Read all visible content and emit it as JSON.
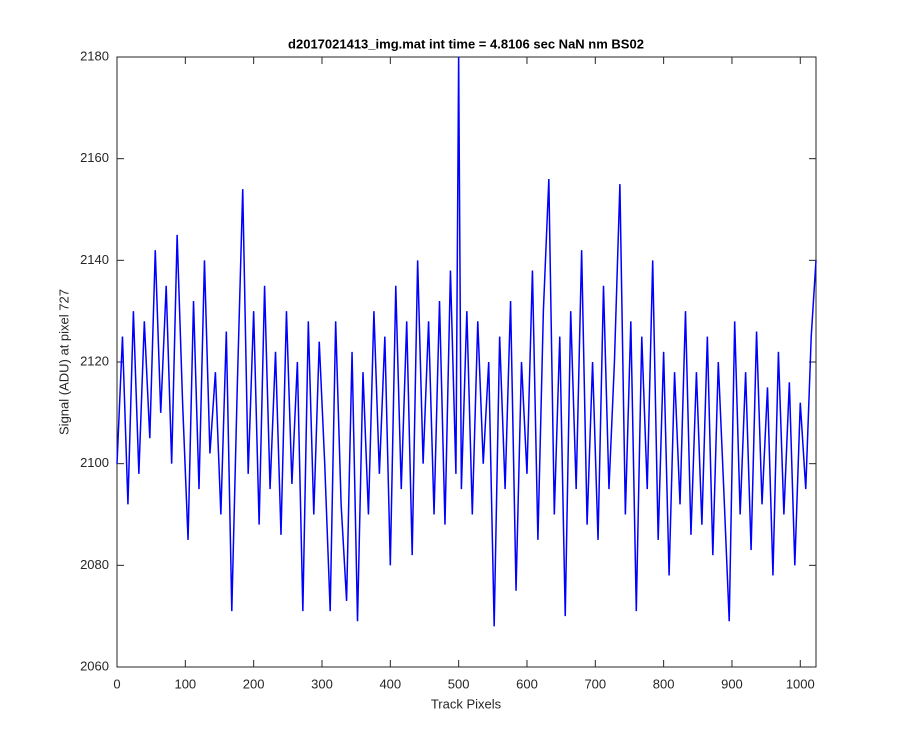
{
  "chart_data": {
    "type": "line",
    "title": "d2017021413_img.mat int time = 4.8106 sec  NaN nm BS02",
    "xlabel": "Track Pixels",
    "ylabel": "Signal (ADU) at pixel 727",
    "xlim": [
      0,
      1023
    ],
    "ylim": [
      2060,
      2180
    ],
    "xticks": [
      0,
      100,
      200,
      300,
      400,
      500,
      600,
      700,
      800,
      900,
      1000
    ],
    "yticks": [
      2060,
      2080,
      2100,
      2120,
      2140,
      2160,
      2180
    ],
    "x": [
      0,
      8,
      16,
      24,
      32,
      40,
      48,
      56,
      64,
      72,
      80,
      88,
      96,
      104,
      112,
      120,
      128,
      136,
      144,
      152,
      160,
      168,
      176,
      184,
      192,
      200,
      208,
      216,
      224,
      232,
      240,
      248,
      256,
      264,
      272,
      280,
      288,
      296,
      304,
      312,
      320,
      328,
      336,
      344,
      352,
      360,
      368,
      376,
      384,
      392,
      400,
      408,
      416,
      424,
      432,
      440,
      448,
      456,
      464,
      472,
      480,
      488,
      496,
      500,
      504,
      512,
      520,
      528,
      536,
      544,
      552,
      560,
      568,
      576,
      584,
      592,
      600,
      608,
      616,
      624,
      632,
      640,
      648,
      656,
      664,
      672,
      680,
      688,
      696,
      704,
      712,
      720,
      728,
      736,
      744,
      752,
      760,
      768,
      776,
      784,
      792,
      800,
      808,
      816,
      824,
      832,
      840,
      848,
      856,
      864,
      872,
      880,
      888,
      896,
      904,
      912,
      920,
      928,
      936,
      944,
      952,
      960,
      968,
      976,
      984,
      992,
      1000,
      1008,
      1016,
      1023
    ],
    "series": [
      {
        "name": "signal",
        "color": "#0000ff",
        "values": [
          2100,
          2125,
          2092,
          2130,
          2098,
          2128,
          2105,
          2142,
          2110,
          2135,
          2100,
          2145,
          2112,
          2085,
          2132,
          2095,
          2140,
          2102,
          2118,
          2090,
          2126,
          2071,
          2115,
          2154,
          2098,
          2130,
          2088,
          2135,
          2095,
          2122,
          2086,
          2130,
          2096,
          2120,
          2071,
          2128,
          2090,
          2124,
          2100,
          2071,
          2128,
          2092,
          2073,
          2122,
          2069,
          2118,
          2090,
          2130,
          2098,
          2125,
          2080,
          2135,
          2095,
          2128,
          2082,
          2140,
          2100,
          2128,
          2090,
          2132,
          2088,
          2138,
          2098,
          2180,
          2095,
          2130,
          2090,
          2128,
          2100,
          2120,
          2068,
          2125,
          2095,
          2132,
          2075,
          2120,
          2098,
          2138,
          2085,
          2130,
          2156,
          2090,
          2125,
          2070,
          2130,
          2095,
          2142,
          2088,
          2120,
          2085,
          2135,
          2095,
          2120,
          2155,
          2090,
          2128,
          2071,
          2125,
          2095,
          2140,
          2085,
          2122,
          2078,
          2118,
          2092,
          2130,
          2086,
          2118,
          2088,
          2125,
          2082,
          2120,
          2095,
          2069,
          2128,
          2090,
          2118,
          2083,
          2126,
          2092,
          2115,
          2078,
          2122,
          2090,
          2116,
          2080,
          2112,
          2095,
          2125,
          2140
        ]
      }
    ]
  }
}
